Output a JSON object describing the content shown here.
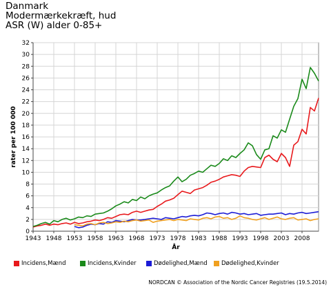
{
  "header": {
    "line1": "Danmark",
    "line2": "Modermærkekræft, hud",
    "line3": "ASR (W) alder 0-85+"
  },
  "footer": {
    "credit": "NORDCAN © Association of the Nordic Cancer Registries (19.5.2014)"
  },
  "chart_data": {
    "type": "line",
    "xlabel": "År",
    "ylabel": "rater per 100 000",
    "ylim": [
      0,
      32
    ],
    "xlim": [
      1943,
      2012
    ],
    "yticks": [
      0,
      2,
      4,
      6,
      8,
      10,
      12,
      14,
      16,
      18,
      20,
      22,
      24,
      26,
      28,
      30,
      32
    ],
    "xticks": [
      1943,
      1948,
      1953,
      1958,
      1963,
      1968,
      1973,
      1978,
      1983,
      1988,
      1993,
      1998,
      2003,
      2008
    ],
    "grid": true,
    "legend_position": "bottom",
    "series": [
      {
        "name": "Incidens,Mænd",
        "color": "#e8191c",
        "x": [
          1943,
          1944,
          1945,
          1946,
          1947,
          1948,
          1949,
          1950,
          1951,
          1952,
          1953,
          1954,
          1955,
          1956,
          1957,
          1958,
          1959,
          1960,
          1961,
          1962,
          1963,
          1964,
          1965,
          1966,
          1967,
          1968,
          1969,
          1970,
          1971,
          1972,
          1973,
          1974,
          1975,
          1976,
          1977,
          1978,
          1979,
          1980,
          1981,
          1982,
          1983,
          1984,
          1985,
          1986,
          1987,
          1988,
          1989,
          1990,
          1991,
          1992,
          1993,
          1994,
          1995,
          1996,
          1997,
          1998,
          1999,
          2000,
          2001,
          2002,
          2003,
          2004,
          2005,
          2006,
          2007,
          2008,
          2009,
          2010,
          2011,
          2012
        ],
        "y": [
          0.7,
          0.9,
          1.0,
          1.2,
          1.0,
          1.2,
          1.1,
          1.3,
          1.4,
          1.2,
          1.5,
          1.3,
          1.4,
          1.6,
          1.7,
          1.9,
          1.8,
          2.0,
          2.3,
          2.2,
          2.5,
          2.8,
          2.9,
          2.8,
          3.2,
          3.4,
          3.2,
          3.4,
          3.6,
          3.7,
          4.2,
          4.6,
          5.1,
          5.3,
          5.6,
          6.2,
          6.8,
          6.6,
          6.4,
          7.0,
          7.2,
          7.4,
          7.8,
          8.3,
          8.5,
          8.8,
          9.2,
          9.4,
          9.6,
          9.5,
          9.3,
          10.2,
          10.8,
          11.0,
          10.9,
          10.8,
          12.5,
          12.9,
          12.2,
          11.8,
          13.2,
          12.5,
          11.0,
          14.6,
          15.2,
          17.3,
          16.5,
          21.0,
          20.4,
          22.6
        ]
      },
      {
        "name": "Incidens,Kvinder",
        "color": "#1a8a1a",
        "x": [
          1943,
          1944,
          1945,
          1946,
          1947,
          1948,
          1949,
          1950,
          1951,
          1952,
          1953,
          1954,
          1955,
          1956,
          1957,
          1958,
          1959,
          1960,
          1961,
          1962,
          1963,
          1964,
          1965,
          1966,
          1967,
          1968,
          1969,
          1970,
          1971,
          1972,
          1973,
          1974,
          1975,
          1976,
          1977,
          1978,
          1979,
          1980,
          1981,
          1982,
          1983,
          1984,
          1985,
          1986,
          1987,
          1988,
          1989,
          1990,
          1991,
          1992,
          1993,
          1994,
          1995,
          1996,
          1997,
          1998,
          1999,
          2000,
          2001,
          2002,
          2003,
          2004,
          2005,
          2006,
          2007,
          2008,
          2009,
          2010,
          2011,
          2012
        ],
        "y": [
          0.8,
          1.0,
          1.3,
          1.5,
          1.2,
          1.8,
          1.6,
          2.0,
          2.2,
          1.9,
          2.1,
          2.4,
          2.3,
          2.6,
          2.5,
          2.9,
          3.0,
          3.1,
          3.4,
          3.8,
          4.3,
          4.6,
          5.0,
          4.8,
          5.4,
          5.2,
          5.8,
          5.5,
          6.0,
          6.3,
          6.5,
          7.0,
          7.4,
          7.7,
          8.5,
          9.2,
          8.4,
          8.8,
          9.5,
          9.8,
          10.2,
          10.0,
          10.6,
          11.2,
          11.0,
          11.5,
          12.3,
          12.0,
          12.8,
          12.5,
          13.2,
          13.8,
          15.0,
          14.5,
          13.0,
          12.2,
          13.8,
          14.0,
          16.2,
          15.8,
          17.2,
          16.8,
          19.0,
          21.2,
          22.5,
          25.8,
          24.2,
          27.8,
          26.8,
          25.5
        ]
      },
      {
        "name": "Dødelighed,Mænd",
        "color": "#1c1cd6",
        "x": [
          1953,
          1954,
          1955,
          1956,
          1957,
          1958,
          1959,
          1960,
          1961,
          1962,
          1963,
          1964,
          1965,
          1966,
          1967,
          1968,
          1969,
          1970,
          1971,
          1972,
          1973,
          1974,
          1975,
          1976,
          1977,
          1978,
          1979,
          1980,
          1981,
          1982,
          1983,
          1984,
          1985,
          1986,
          1987,
          1988,
          1989,
          1990,
          1991,
          1992,
          1993,
          1994,
          1995,
          1996,
          1997,
          1998,
          1999,
          2000,
          2001,
          2002,
          2003,
          2004,
          2005,
          2006,
          2007,
          2008,
          2009,
          2010,
          2011,
          2012
        ],
        "y": [
          0.8,
          0.6,
          0.7,
          1.0,
          1.2,
          1.1,
          1.3,
          1.2,
          1.6,
          1.5,
          1.8,
          1.7,
          1.6,
          1.8,
          2.0,
          1.9,
          1.9,
          2.0,
          2.1,
          2.2,
          2.1,
          2.0,
          2.3,
          2.2,
          2.1,
          2.3,
          2.5,
          2.4,
          2.6,
          2.7,
          2.6,
          2.8,
          3.1,
          3.0,
          2.8,
          3.0,
          3.1,
          2.9,
          3.2,
          3.1,
          2.9,
          3.0,
          2.8,
          2.9,
          3.0,
          2.7,
          2.8,
          2.9,
          2.9,
          3.0,
          3.1,
          2.8,
          3.0,
          2.9,
          3.1,
          3.2,
          3.0,
          3.1,
          3.2,
          3.3
        ]
      },
      {
        "name": "Dødelighed,Kvinder",
        "color": "#f0a020",
        "x": [
          1953,
          1954,
          1955,
          1956,
          1957,
          1958,
          1959,
          1960,
          1961,
          1962,
          1963,
          1964,
          1965,
          1966,
          1967,
          1968,
          1969,
          1970,
          1971,
          1972,
          1973,
          1974,
          1975,
          1976,
          1977,
          1978,
          1979,
          1980,
          1981,
          1982,
          1983,
          1984,
          1985,
          1986,
          1987,
          1988,
          1989,
          1990,
          1991,
          1992,
          1993,
          1994,
          1995,
          1996,
          1997,
          1998,
          1999,
          2000,
          2001,
          2002,
          2003,
          2004,
          2005,
          2006,
          2007,
          2008,
          2009,
          2010,
          2011,
          2012
        ],
        "y": [
          1.1,
          1.0,
          0.9,
          1.2,
          1.3,
          1.1,
          1.4,
          1.5,
          1.3,
          1.4,
          1.6,
          1.5,
          1.7,
          1.6,
          1.8,
          1.9,
          1.7,
          1.8,
          1.9,
          1.5,
          1.7,
          1.8,
          1.9,
          2.0,
          1.8,
          2.0,
          1.9,
          1.8,
          2.1,
          2.0,
          1.9,
          2.2,
          2.3,
          2.1,
          2.4,
          2.5,
          2.2,
          2.3,
          2.0,
          2.2,
          2.6,
          2.3,
          2.2,
          2.0,
          1.9,
          2.1,
          2.3,
          2.0,
          2.2,
          2.4,
          2.1,
          2.0,
          2.2,
          2.3,
          1.9,
          2.0,
          2.1,
          1.8,
          2.0,
          2.1
        ]
      }
    ]
  }
}
